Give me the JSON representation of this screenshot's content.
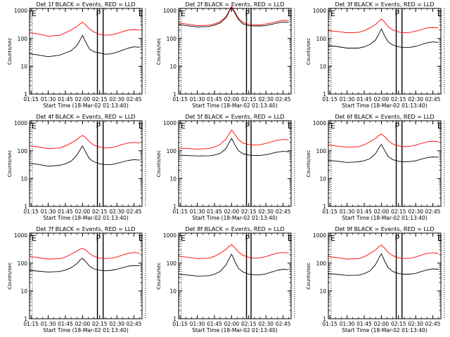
{
  "colors": {
    "events": "#000000",
    "lld": "#ff0000",
    "background": "#ffffff",
    "axis": "#000000"
  },
  "common": {
    "xlabel": "Start Time (18-Mar-02 01:13:40)",
    "ylabel": "Counts/sec",
    "x_ticks": [
      "01:15",
      "01:30",
      "01:45",
      "02:00",
      "02:15",
      "02:30",
      "02:45"
    ],
    "y_ticks": [
      "1",
      "10",
      "100",
      "1000"
    ],
    "region_markers": [
      "E",
      "P",
      "E"
    ]
  },
  "chart_data": [
    {
      "type": "line",
      "title": "Det 1f BLACK = Events, RED = LLD",
      "yscale": "log",
      "ylim": [
        1,
        1200
      ],
      "xlim": [
        "01:13:40",
        "02:52:00"
      ],
      "grid": false,
      "series": [
        {
          "color": "#000000",
          "x": [
            "01:14",
            "01:20",
            "01:30",
            "01:40",
            "01:45",
            "01:50",
            "01:55",
            "01:58",
            "02:00",
            "02:03",
            "02:06",
            "02:10",
            "02:15",
            "02:20",
            "02:25",
            "02:30",
            "02:35",
            "02:40",
            "02:45",
            "02:50"
          ],
          "y": [
            28,
            26,
            22,
            25,
            30,
            36,
            55,
            90,
            130,
            70,
            42,
            33,
            30,
            27,
            28,
            32,
            38,
            45,
            50,
            48
          ]
        },
        {
          "color": "#ff0000",
          "x": [
            "01:14",
            "01:20",
            "01:30",
            "01:40",
            "01:45",
            "01:50",
            "01:55",
            "01:58",
            "02:00",
            "02:03",
            "02:06",
            "02:10",
            "02:15",
            "02:20",
            "02:25",
            "02:30",
            "02:35",
            "02:40",
            "02:45",
            "02:50"
          ],
          "y": [
            160,
            150,
            120,
            130,
            160,
            200,
            270,
            340,
            380,
            300,
            220,
            170,
            140,
            130,
            135,
            150,
            175,
            200,
            210,
            200
          ]
        }
      ]
    },
    {
      "type": "line",
      "title": "Det 2f BLACK = Events, RED = LLD",
      "yscale": "log",
      "ylim": [
        1,
        1200
      ],
      "xlim": [
        "01:13:40",
        "02:52:00"
      ],
      "grid": false,
      "series": [
        {
          "color": "#000000",
          "x": [
            "01:14",
            "01:20",
            "01:30",
            "01:40",
            "01:45",
            "01:50",
            "01:55",
            "01:58",
            "02:00",
            "02:03",
            "02:06",
            "02:10",
            "02:15",
            "02:20",
            "02:25",
            "02:30",
            "02:35",
            "02:40",
            "02:45",
            "02:50"
          ],
          "y": [
            320,
            290,
            260,
            270,
            300,
            360,
            550,
            950,
            1300,
            800,
            480,
            330,
            290,
            280,
            280,
            290,
            320,
            360,
            390,
            380
          ]
        },
        {
          "color": "#ff0000",
          "x": [
            "01:14",
            "01:20",
            "01:30",
            "01:40",
            "01:45",
            "01:50",
            "01:55",
            "01:58",
            "02:00",
            "02:03",
            "02:06",
            "02:10",
            "02:15",
            "02:20",
            "02:25",
            "02:30",
            "02:35",
            "02:40",
            "02:45",
            "02:50"
          ],
          "y": [
            360,
            330,
            290,
            300,
            330,
            400,
            600,
            1000,
            1400,
            880,
            530,
            370,
            320,
            310,
            310,
            330,
            360,
            410,
            450,
            440
          ]
        }
      ]
    },
    {
      "type": "line",
      "title": "Det 3f BLACK = Events, RED = LLD",
      "yscale": "log",
      "ylim": [
        1,
        1200
      ],
      "xlim": [
        "01:13:40",
        "02:52:00"
      ],
      "grid": false,
      "series": [
        {
          "color": "#000000",
          "x": [
            "01:14",
            "01:20",
            "01:30",
            "01:40",
            "01:45",
            "01:50",
            "01:55",
            "01:58",
            "02:00",
            "02:03",
            "02:06",
            "02:10",
            "02:15",
            "02:20",
            "02:25",
            "02:30",
            "02:35",
            "02:40",
            "02:45",
            "02:50"
          ],
          "y": [
            55,
            52,
            45,
            45,
            50,
            60,
            90,
            150,
            220,
            120,
            75,
            58,
            50,
            47,
            48,
            52,
            60,
            70,
            75,
            72
          ]
        },
        {
          "color": "#ff0000",
          "x": [
            "01:14",
            "01:20",
            "01:30",
            "01:40",
            "01:45",
            "01:50",
            "01:55",
            "01:58",
            "02:00",
            "02:03",
            "02:06",
            "02:10",
            "02:15",
            "02:20",
            "02:25",
            "02:30",
            "02:35",
            "02:40",
            "02:45",
            "02:50"
          ],
          "y": [
            190,
            180,
            160,
            165,
            190,
            240,
            320,
            420,
            500,
            380,
            260,
            200,
            170,
            160,
            165,
            180,
            210,
            240,
            250,
            240
          ]
        }
      ]
    },
    {
      "type": "line",
      "title": "Det 4f BLACK = Events, RED = LLD",
      "yscale": "log",
      "ylim": [
        1,
        1200
      ],
      "xlim": [
        "01:13:40",
        "02:52:00"
      ],
      "grid": false,
      "series": [
        {
          "color": "#000000",
          "x": [
            "01:14",
            "01:20",
            "01:30",
            "01:40",
            "01:45",
            "01:50",
            "01:55",
            "01:58",
            "02:00",
            "02:03",
            "02:06",
            "02:10",
            "02:15",
            "02:20",
            "02:25",
            "02:30",
            "02:35",
            "02:40",
            "02:45",
            "02:50"
          ],
          "y": [
            35,
            33,
            28,
            30,
            34,
            42,
            70,
            110,
            150,
            85,
            52,
            40,
            34,
            32,
            32,
            35,
            40,
            45,
            48,
            46
          ]
        },
        {
          "color": "#ff0000",
          "x": [
            "01:14",
            "01:20",
            "01:30",
            "01:40",
            "01:45",
            "01:50",
            "01:55",
            "01:58",
            "02:00",
            "02:03",
            "02:06",
            "02:10",
            "02:15",
            "02:20",
            "02:25",
            "02:30",
            "02:35",
            "02:40",
            "02:45",
            "02:50"
          ],
          "y": [
            150,
            140,
            120,
            125,
            150,
            190,
            250,
            320,
            360,
            290,
            210,
            160,
            135,
            125,
            130,
            145,
            170,
            190,
            200,
            190
          ]
        }
      ]
    },
    {
      "type": "line",
      "title": "Det 5f BLACK = Events, RED = LLD",
      "yscale": "log",
      "ylim": [
        1,
        1200
      ],
      "xlim": [
        "01:13:40",
        "02:52:00"
      ],
      "grid": false,
      "series": [
        {
          "color": "#000000",
          "x": [
            "01:14",
            "01:20",
            "01:30",
            "01:40",
            "01:45",
            "01:50",
            "01:55",
            "01:58",
            "02:00",
            "02:03",
            "02:06",
            "02:10",
            "02:15",
            "02:20",
            "02:25",
            "02:30",
            "02:35",
            "02:40",
            "02:45",
            "02:50"
          ],
          "y": [
            70,
            68,
            65,
            66,
            70,
            80,
            120,
            200,
            280,
            160,
            100,
            78,
            70,
            68,
            68,
            72,
            80,
            90,
            95,
            92
          ]
        },
        {
          "color": "#ff0000",
          "x": [
            "01:14",
            "01:20",
            "01:30",
            "01:40",
            "01:45",
            "01:50",
            "01:55",
            "01:58",
            "02:00",
            "02:03",
            "02:06",
            "02:10",
            "02:15",
            "02:20",
            "02:25",
            "02:30",
            "02:35",
            "02:40",
            "02:45",
            "02:50"
          ],
          "y": [
            125,
            122,
            115,
            120,
            135,
            170,
            260,
            420,
            560,
            380,
            250,
            190,
            165,
            160,
            165,
            185,
            210,
            240,
            255,
            245
          ]
        }
      ]
    },
    {
      "type": "line",
      "title": "Det 6f BLACK = Events, RED = LLD",
      "yscale": "log",
      "ylim": [
        1,
        1200
      ],
      "xlim": [
        "01:13:40",
        "02:52:00"
      ],
      "grid": false,
      "series": [
        {
          "color": "#000000",
          "x": [
            "01:14",
            "01:20",
            "01:30",
            "01:40",
            "01:45",
            "01:50",
            "01:55",
            "01:58",
            "02:00",
            "02:03",
            "02:06",
            "02:10",
            "02:15",
            "02:20",
            "02:25",
            "02:30",
            "02:35",
            "02:40",
            "02:45",
            "02:50"
          ],
          "y": [
            45,
            43,
            38,
            40,
            44,
            52,
            80,
            130,
            170,
            100,
            62,
            48,
            42,
            40,
            41,
            44,
            50,
            57,
            60,
            58
          ]
        },
        {
          "color": "#ff0000",
          "x": [
            "01:14",
            "01:20",
            "01:30",
            "01:40",
            "01:45",
            "01:50",
            "01:55",
            "01:58",
            "02:00",
            "02:03",
            "02:06",
            "02:10",
            "02:15",
            "02:20",
            "02:25",
            "02:30",
            "02:35",
            "02:40",
            "02:45",
            "02:50"
          ],
          "y": [
            160,
            150,
            135,
            140,
            165,
            210,
            280,
            360,
            400,
            320,
            230,
            175,
            150,
            140,
            145,
            160,
            185,
            210,
            220,
            210
          ]
        }
      ]
    },
    {
      "type": "line",
      "title": "Det 7f BLACK = Events, RED = LLD",
      "yscale": "log",
      "ylim": [
        1,
        1200
      ],
      "xlim": [
        "01:13:40",
        "02:52:00"
      ],
      "grid": false,
      "series": [
        {
          "color": "#000000",
          "x": [
            "01:14",
            "01:20",
            "01:30",
            "01:40",
            "01:45",
            "01:50",
            "01:55",
            "01:58",
            "02:00",
            "02:03",
            "02:06",
            "02:10",
            "02:15",
            "02:20",
            "02:25",
            "02:30",
            "02:35",
            "02:40",
            "02:45",
            "02:50"
          ],
          "y": [
            55,
            52,
            48,
            50,
            56,
            68,
            95,
            130,
            150,
            110,
            78,
            62,
            55,
            53,
            55,
            60,
            68,
            78,
            82,
            80
          ]
        },
        {
          "color": "#ff0000",
          "x": [
            "01:14",
            "01:20",
            "01:30",
            "01:40",
            "01:45",
            "01:50",
            "01:55",
            "01:58",
            "02:00",
            "02:03",
            "02:06",
            "02:10",
            "02:15",
            "02:20",
            "02:25",
            "02:30",
            "02:35",
            "02:40",
            "02:45",
            "02:50"
          ],
          "y": [
            170,
            160,
            140,
            145,
            165,
            210,
            270,
            320,
            340,
            290,
            220,
            175,
            150,
            145,
            150,
            165,
            195,
            225,
            240,
            230
          ]
        }
      ]
    },
    {
      "type": "line",
      "title": "Det 8f BLACK = Events, RED = LLD",
      "yscale": "log",
      "ylim": [
        1,
        1200
      ],
      "xlim": [
        "01:13:40",
        "02:52:00"
      ],
      "grid": false,
      "series": [
        {
          "color": "#000000",
          "x": [
            "01:14",
            "01:20",
            "01:30",
            "01:40",
            "01:45",
            "01:50",
            "01:55",
            "01:58",
            "02:00",
            "02:03",
            "02:06",
            "02:10",
            "02:15",
            "02:20",
            "02:25",
            "02:30",
            "02:35",
            "02:40",
            "02:45",
            "02:50"
          ],
          "y": [
            40,
            38,
            34,
            35,
            40,
            50,
            85,
            150,
            210,
            110,
            65,
            48,
            40,
            38,
            38,
            41,
            48,
            55,
            60,
            58
          ]
        },
        {
          "color": "#ff0000",
          "x": [
            "01:14",
            "01:20",
            "01:30",
            "01:40",
            "01:45",
            "01:50",
            "01:55",
            "01:58",
            "02:00",
            "02:03",
            "02:06",
            "02:10",
            "02:15",
            "02:20",
            "02:25",
            "02:30",
            "02:35",
            "02:40",
            "02:45",
            "02:50"
          ],
          "y": [
            175,
            165,
            145,
            150,
            175,
            225,
            310,
            410,
            460,
            350,
            250,
            190,
            160,
            150,
            155,
            170,
            200,
            230,
            240,
            230
          ]
        }
      ]
    },
    {
      "type": "line",
      "title": "Det 9f BLACK = Events, RED = LLD",
      "yscale": "log",
      "ylim": [
        1,
        1200
      ],
      "xlim": [
        "01:13:40",
        "02:52:00"
      ],
      "grid": false,
      "series": [
        {
          "color": "#000000",
          "x": [
            "01:14",
            "01:20",
            "01:30",
            "01:40",
            "01:45",
            "01:50",
            "01:55",
            "01:58",
            "02:00",
            "02:03",
            "02:06",
            "02:10",
            "02:15",
            "02:20",
            "02:25",
            "02:30",
            "02:35",
            "02:40",
            "02:45",
            "02:50"
          ],
          "y": [
            42,
            40,
            36,
            37,
            42,
            52,
            90,
            155,
            220,
            115,
            68,
            50,
            42,
            40,
            40,
            43,
            50,
            57,
            62,
            60
          ]
        },
        {
          "color": "#ff0000",
          "x": [
            "01:14",
            "01:20",
            "01:30",
            "01:40",
            "01:45",
            "01:50",
            "01:55",
            "01:58",
            "02:00",
            "02:03",
            "02:06",
            "02:10",
            "02:15",
            "02:20",
            "02:25",
            "02:30",
            "02:35",
            "02:40",
            "02:45",
            "02:50"
          ],
          "y": [
            170,
            160,
            140,
            145,
            170,
            220,
            300,
            400,
            450,
            340,
            240,
            185,
            155,
            145,
            150,
            165,
            195,
            225,
            235,
            225
          ]
        }
      ]
    }
  ]
}
